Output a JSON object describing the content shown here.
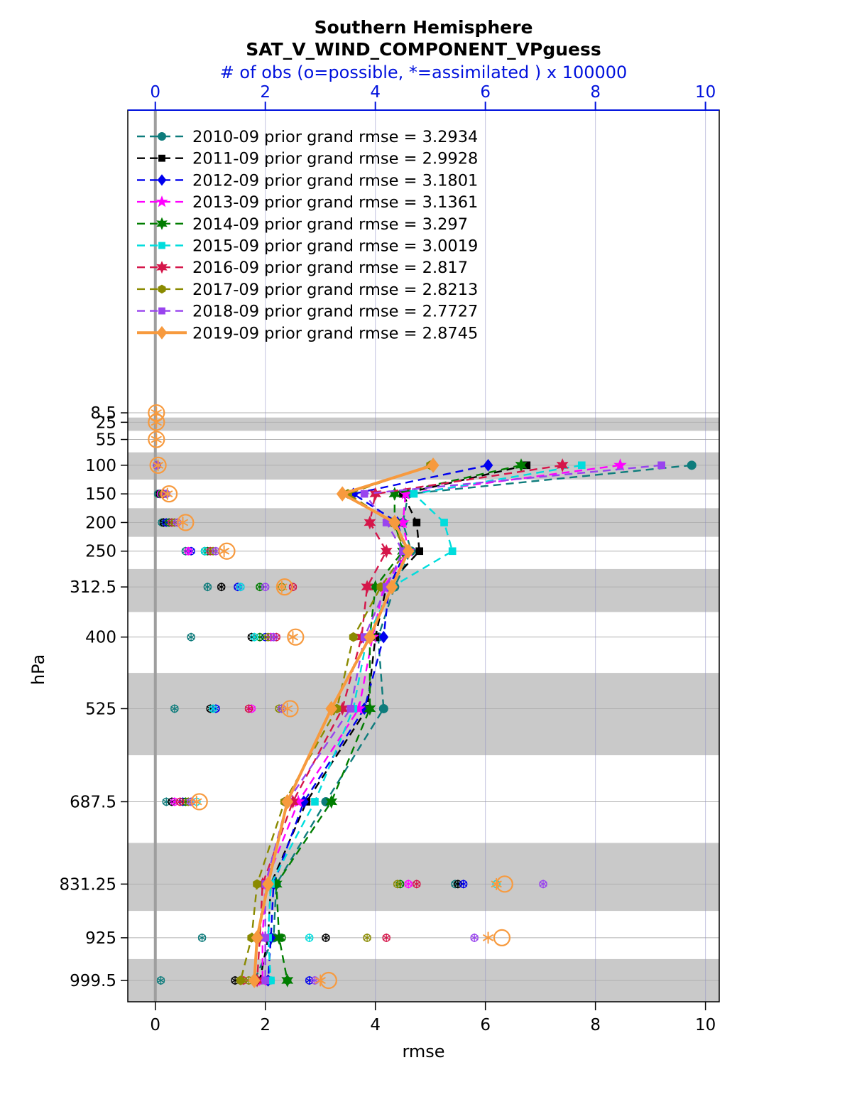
{
  "chart_data": {
    "type": "line",
    "title": "Southern Hemisphere",
    "subtitle": "SAT_V_WIND_COMPONENT_VPguess",
    "top_axis_label": "# of obs (o=possible, *=assimilated ) x 100000",
    "xlabel": "rmse",
    "ylabel": "hPa",
    "x_ticks": [
      0,
      2,
      4,
      6,
      8,
      10
    ],
    "top_ticks": [
      0,
      2,
      4,
      6,
      8,
      10
    ],
    "xlim": [
      -0.5,
      10.25
    ],
    "ylim": [
      -520,
      1036.75
    ],
    "grid": true,
    "legend_position": "top-left-inside",
    "levels": [
      8.5,
      25,
      55,
      100,
      150,
      200,
      250,
      312.5,
      400,
      525,
      687.5,
      831.25,
      925,
      999.5
    ],
    "shaded_levels": [
      25,
      100,
      200,
      312.5,
      525,
      831.25,
      999.5
    ],
    "band_color": "#c9c9c9",
    "zero_line_color": "#9e9e9e",
    "top_axis_color": "#0011dd",
    "series": [
      {
        "name": "2010-09",
        "label": "2010-09 prior grand rmse = 3.2934",
        "grand_rmse": 3.2934,
        "color": "#0e7c7c",
        "marker": "circle",
        "emphasis": false,
        "rmse": [
          null,
          null,
          null,
          9.75,
          4.6,
          4.5,
          4.65,
          4.35,
          4.05,
          4.15,
          3.1,
          2.2,
          2.15,
          1.8
        ],
        "obs_possible": [
          null,
          null,
          null,
          0.03,
          0.05,
          0.12,
          0.55,
          0.95,
          0.65,
          0.35,
          0.2,
          5.45,
          0.85,
          0.1
        ],
        "obs_assimilated": [
          null,
          null,
          null,
          0.03,
          0.05,
          0.12,
          0.55,
          0.95,
          0.65,
          0.35,
          0.2,
          5.45,
          0.85,
          0.1
        ]
      },
      {
        "name": "2011-09",
        "label": "2011-09 prior grand rmse = 2.9928",
        "grand_rmse": 2.9928,
        "color": "#000000",
        "marker": "square",
        "emphasis": false,
        "rmse": [
          null,
          null,
          null,
          6.75,
          4.5,
          4.75,
          4.8,
          4.2,
          4.0,
          3.85,
          2.75,
          2.1,
          2.05,
          1.9
        ],
        "obs_possible": [
          null,
          null,
          null,
          0.03,
          0.08,
          0.15,
          0.9,
          1.2,
          1.75,
          1.0,
          0.3,
          5.5,
          3.1,
          1.45
        ],
        "obs_assimilated": [
          null,
          null,
          null,
          0.03,
          0.08,
          0.15,
          0.9,
          1.2,
          1.75,
          1.0,
          0.3,
          5.5,
          3.1,
          1.45
        ]
      },
      {
        "name": "2012-09",
        "label": "2012-09 prior grand rmse = 3.1801",
        "grand_rmse": 3.1801,
        "color": "#0000ee",
        "marker": "diamond",
        "emphasis": false,
        "rmse": [
          null,
          null,
          null,
          6.05,
          3.6,
          4.4,
          4.55,
          4.25,
          4.15,
          3.8,
          2.7,
          2.15,
          2.1,
          2.05
        ],
        "obs_possible": [
          null,
          null,
          null,
          0.03,
          0.1,
          0.2,
          0.65,
          1.5,
          2.0,
          1.1,
          0.5,
          5.6,
          2.0,
          2.8
        ],
        "obs_assimilated": [
          null,
          null,
          null,
          0.03,
          0.1,
          0.2,
          0.65,
          1.5,
          2.0,
          1.1,
          0.5,
          5.6,
          2.0,
          2.8
        ]
      },
      {
        "name": "2013-09",
        "label": "2013-09 prior grand rmse = 3.1361",
        "grand_rmse": 3.1361,
        "color": "#ff00ff",
        "marker": "star5",
        "emphasis": false,
        "rmse": [
          null,
          null,
          null,
          8.45,
          4.55,
          4.5,
          4.6,
          4.15,
          3.95,
          3.7,
          2.6,
          2.0,
          1.95,
          1.95
        ],
        "obs_possible": [
          null,
          null,
          null,
          0.03,
          0.1,
          0.25,
          0.6,
          1.55,
          2.1,
          1.75,
          0.35,
          4.6,
          2.1,
          2.0
        ],
        "obs_assimilated": [
          null,
          null,
          null,
          0.03,
          0.1,
          0.25,
          0.6,
          1.55,
          2.1,
          1.75,
          0.35,
          4.6,
          2.1,
          2.0
        ]
      },
      {
        "name": "2014-09",
        "label": "2014-09 prior grand rmse = 3.297",
        "grand_rmse": 3.297,
        "color": "#007d00",
        "marker": "star6",
        "emphasis": false,
        "rmse": [
          null,
          null,
          null,
          6.65,
          4.35,
          4.35,
          4.5,
          4.0,
          3.9,
          3.9,
          3.2,
          2.2,
          2.25,
          2.4
        ],
        "obs_possible": [
          null,
          null,
          null,
          0.03,
          0.12,
          0.25,
          0.95,
          1.9,
          1.9,
          2.3,
          0.55,
          4.45,
          2.3,
          2.4
        ],
        "obs_assimilated": [
          null,
          null,
          null,
          0.03,
          0.12,
          0.25,
          0.95,
          1.9,
          1.9,
          2.3,
          0.55,
          4.45,
          2.3,
          2.4
        ]
      },
      {
        "name": "2015-09",
        "label": "2015-09 prior grand rmse = 3.0019",
        "grand_rmse": 3.0019,
        "color": "#00dddd",
        "marker": "square",
        "emphasis": false,
        "rmse": [
          null,
          null,
          null,
          7.75,
          4.7,
          5.25,
          5.4,
          4.3,
          3.85,
          3.6,
          2.9,
          2.1,
          2.05,
          2.1
        ],
        "obs_possible": [
          null,
          null,
          null,
          0.03,
          0.15,
          0.3,
          0.9,
          1.55,
          1.8,
          1.05,
          0.75,
          6.2,
          2.8,
          2.1
        ],
        "obs_assimilated": [
          null,
          null,
          null,
          0.03,
          0.15,
          0.3,
          0.9,
          1.55,
          1.8,
          1.05,
          0.75,
          6.2,
          2.8,
          2.1
        ]
      },
      {
        "name": "2016-09",
        "label": "2016-09 prior grand rmse = 2.817",
        "grand_rmse": 2.817,
        "color": "#d5164a",
        "marker": "star6",
        "emphasis": false,
        "rmse": [
          null,
          null,
          null,
          7.4,
          4.0,
          3.9,
          4.2,
          3.85,
          3.75,
          3.4,
          2.5,
          1.95,
          1.9,
          1.85
        ],
        "obs_possible": [
          null,
          null,
          null,
          0.03,
          0.15,
          0.3,
          1.0,
          2.5,
          2.2,
          1.7,
          0.45,
          4.75,
          4.2,
          1.6
        ],
        "obs_assimilated": [
          null,
          null,
          null,
          0.03,
          0.15,
          0.3,
          1.0,
          2.5,
          2.2,
          1.7,
          0.45,
          4.75,
          4.2,
          1.6
        ]
      },
      {
        "name": "2017-09",
        "label": "2017-09 prior grand rmse = 2.8213",
        "grand_rmse": 2.8213,
        "color": "#8a8a00",
        "marker": "hexagon",
        "emphasis": false,
        "rmse": [
          null,
          null,
          null,
          5.0,
          3.5,
          4.3,
          4.55,
          4.1,
          3.6,
          3.3,
          2.35,
          1.85,
          1.75,
          1.55
        ],
        "obs_possible": [
          null,
          null,
          null,
          0.03,
          0.2,
          0.35,
          1.05,
          2.3,
          2.05,
          2.25,
          0.6,
          4.4,
          3.85,
          1.7
        ],
        "obs_assimilated": [
          null,
          null,
          null,
          0.03,
          0.2,
          0.35,
          1.05,
          2.3,
          2.05,
          2.25,
          0.6,
          4.4,
          3.85,
          1.7
        ]
      },
      {
        "name": "2018-09",
        "label": "2018-09 prior grand rmse = 2.7727",
        "grand_rmse": 2.7727,
        "color": "#9944ee",
        "marker": "square",
        "emphasis": false,
        "rmse": [
          null,
          null,
          null,
          9.2,
          3.8,
          4.2,
          4.5,
          4.2,
          3.8,
          3.55,
          2.4,
          2.0,
          2.0,
          2.0
        ],
        "obs_possible": [
          null,
          null,
          null,
          0.03,
          0.2,
          0.4,
          1.1,
          2.0,
          2.15,
          2.3,
          0.65,
          7.05,
          5.8,
          2.9
        ],
        "obs_assimilated": [
          null,
          null,
          null,
          0.03,
          0.2,
          0.4,
          1.1,
          2.0,
          2.15,
          2.3,
          0.65,
          7.05,
          5.8,
          2.9
        ]
      },
      {
        "name": "2019-09",
        "label": "2019-09 prior grand rmse = 2.8745",
        "grand_rmse": 2.8745,
        "color": "#f79a3e",
        "marker": "diamond",
        "emphasis": true,
        "rmse": [
          null,
          null,
          null,
          5.05,
          3.4,
          4.35,
          4.6,
          4.3,
          3.9,
          3.2,
          2.4,
          2.05,
          1.85,
          1.8
        ],
        "obs_possible": [
          0.02,
          0.02,
          0.02,
          0.05,
          0.25,
          0.55,
          1.3,
          2.35,
          2.55,
          2.45,
          0.8,
          6.35,
          6.3,
          3.15
        ],
        "obs_assimilated": [
          0.02,
          0.02,
          0.02,
          0.05,
          0.22,
          0.5,
          1.25,
          2.3,
          2.5,
          2.4,
          0.75,
          6.2,
          6.05,
          3.0
        ]
      }
    ]
  }
}
